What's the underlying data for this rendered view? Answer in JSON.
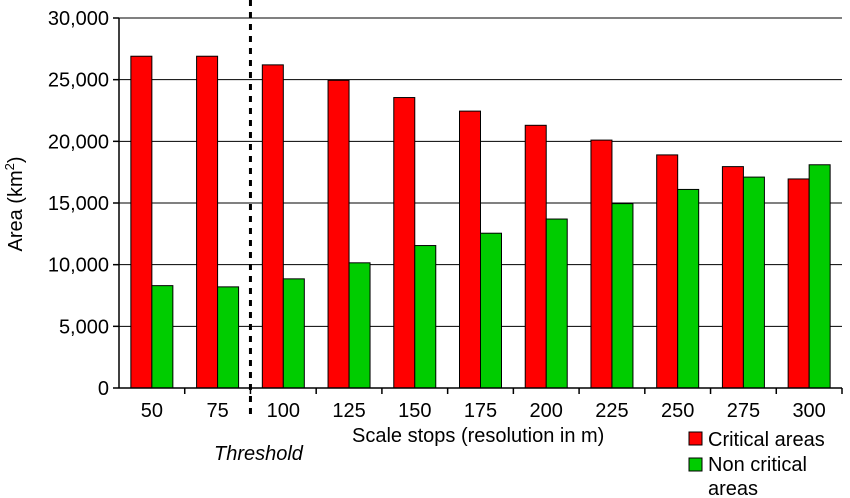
{
  "chart_data": {
    "type": "bar",
    "categories": [
      "50",
      "75",
      "100",
      "125",
      "150",
      "175",
      "200",
      "225",
      "250",
      "275",
      "300"
    ],
    "series": [
      {
        "name": "Critical areas",
        "color": "#ff0000",
        "values": [
          26900,
          26900,
          26200,
          24950,
          23550,
          22450,
          21300,
          20100,
          18900,
          17950,
          16950
        ]
      },
      {
        "name": "Non critical areas",
        "color": "#00cc00",
        "values": [
          8300,
          8200,
          8850,
          10150,
          11550,
          12550,
          13700,
          14950,
          16100,
          17100,
          18100
        ]
      }
    ],
    "title": "",
    "xlabel": "Scale stops (resolution in m)",
    "ylabel": "Area (km",
    "ylabel_sup": "2",
    "ylabel_close": ")",
    "ylim": [
      0,
      30000
    ],
    "yticks": [
      "0",
      "5,000",
      "10,000",
      "15,000",
      "20,000",
      "25,000",
      "30,000"
    ],
    "ytick_values": [
      0,
      5000,
      10000,
      15000,
      20000,
      25000,
      30000
    ],
    "grid": true,
    "legend_position": "bottom-right",
    "legend_labels": [
      "Critical areas",
      "Non critical",
      "areas"
    ],
    "annotation": {
      "text": "Threshold",
      "after_category": "75"
    }
  }
}
